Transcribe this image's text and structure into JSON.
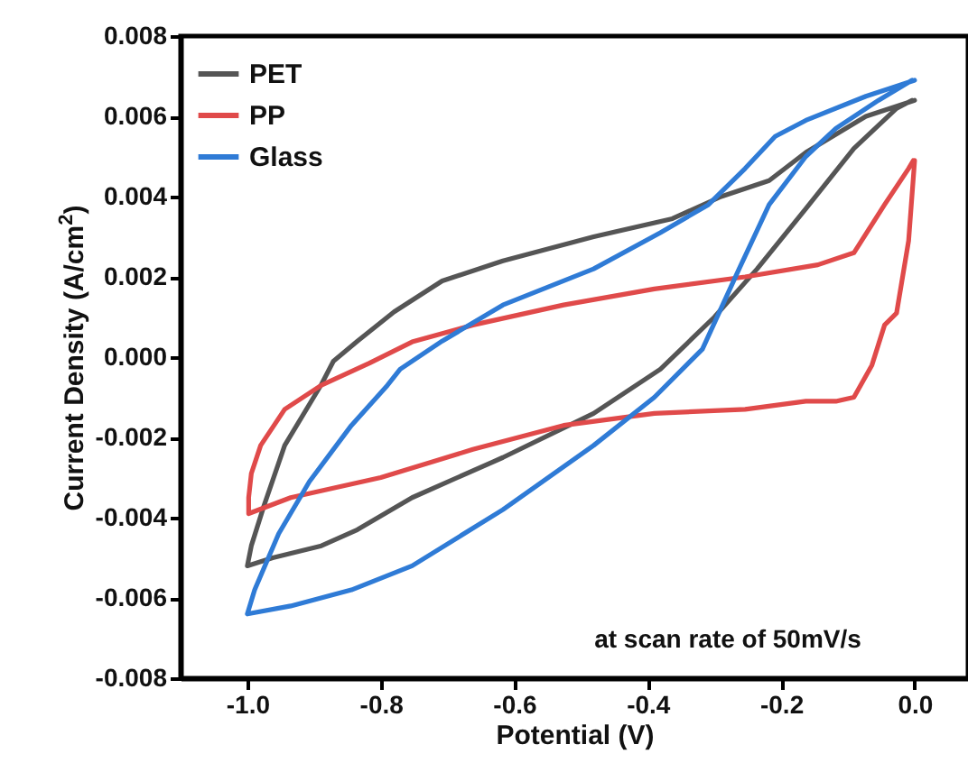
{
  "chart_data": {
    "type": "line",
    "xlabel": "Potential (V)",
    "ylabel": "Current Density (A/cm$^{2}$)",
    "xlim": [
      -1.1,
      0.08
    ],
    "xticks": [
      {
        "value": -1.0,
        "label": "-1.0"
      },
      {
        "value": -0.8,
        "label": "-0.8"
      },
      {
        "value": -0.6,
        "label": "-0.6"
      },
      {
        "value": -0.4,
        "label": "-0.4"
      },
      {
        "value": -0.2,
        "label": "-0.2"
      },
      {
        "value": 0,
        "label": "0.0"
      }
    ],
    "ylim": [
      -0.008,
      0.008
    ],
    "yticks": [
      {
        "value": -0.008,
        "label": "-0.008"
      },
      {
        "value": -0.006,
        "label": "-0.006"
      },
      {
        "value": -0.004,
        "label": "-0.004"
      },
      {
        "value": -0.002,
        "label": "-0.002"
      },
      {
        "value": 0,
        "label": "0.000"
      },
      {
        "value": 0.002,
        "label": "0.002"
      },
      {
        "value": 0.004,
        "label": "0.004"
      },
      {
        "value": 0.006,
        "label": "0.006"
      },
      {
        "value": 0.008,
        "label": "0.008"
      }
    ],
    "grid": false,
    "legend": "top left",
    "marker": "none",
    "line_style": "solid",
    "annotations": [
      "at scan rate of 50mV/s"
    ],
    "series": [
      {
        "name": "PET",
        "color": "#555555",
        "x": [
          0,
          -0.073,
          -0.163,
          -0.218,
          -0.29,
          -0.363,
          -0.481,
          -0.617,
          -0.708,
          -0.78,
          -0.835,
          -0.871,
          -0.889,
          -0.944,
          -0.975,
          -0.994,
          -1.0,
          -0.962,
          -0.889,
          -0.835,
          -0.753,
          -0.617,
          -0.481,
          -0.381,
          -0.3,
          -0.236,
          -0.163,
          -0.091,
          -0.027,
          -0.004
        ],
        "values": [
          0.0064,
          0.006,
          0.0051,
          0.0044,
          0.004,
          0.00345,
          0.003,
          0.0024,
          0.0019,
          0.00113,
          0.0004,
          -0.0001,
          -0.00068,
          -0.0022,
          -0.0037,
          -0.0047,
          -0.0052,
          -0.005,
          -0.0047,
          -0.0043,
          -0.0035,
          -0.0025,
          -0.0014,
          -0.0003,
          0.001,
          0.0022,
          0.0037,
          0.0052,
          0.0062,
          0.0064
        ]
      },
      {
        "name": "PP",
        "color": "#e04a4a",
        "x": [
          0,
          -0.009,
          -0.027,
          -0.045,
          -0.064,
          -0.091,
          -0.118,
          -0.163,
          -0.254,
          -0.39,
          -0.526,
          -0.662,
          -0.8,
          -0.935,
          -0.998,
          -0.998,
          -0.994,
          -0.98,
          -0.944,
          -0.889,
          -0.817,
          -0.753,
          -0.662,
          -0.526,
          -0.39,
          -0.254,
          -0.145,
          -0.091,
          -0.045,
          -0.009,
          -0.002
        ],
        "values": [
          0.0049,
          0.0029,
          0.0011,
          0.0008,
          -0.0002,
          -0.001,
          -0.0011,
          -0.0011,
          -0.0013,
          -0.0014,
          -0.0017,
          -0.0023,
          -0.003,
          -0.0035,
          -0.0039,
          -0.0035,
          -0.0029,
          -0.0022,
          -0.0013,
          -0.0007,
          -0.00015,
          0.00038,
          0.0008,
          0.0013,
          0.0017,
          0.002,
          0.0023,
          0.0026,
          0.0038,
          0.0047,
          0.0049
        ]
      },
      {
        "name": "Glass",
        "color": "#2f7bd6",
        "x": [
          0,
          -0.073,
          -0.163,
          -0.209,
          -0.254,
          -0.309,
          -0.381,
          -0.481,
          -0.617,
          -0.708,
          -0.771,
          -0.79,
          -0.844,
          -0.907,
          -0.953,
          -0.989,
          -1.0,
          -0.935,
          -0.844,
          -0.753,
          -0.617,
          -0.481,
          -0.39,
          -0.318,
          -0.263,
          -0.218,
          -0.163,
          -0.118,
          -0.054,
          -0.004
        ],
        "values": [
          0.0069,
          0.0065,
          0.0059,
          0.0055,
          0.0047,
          0.0038,
          0.0031,
          0.0022,
          0.0013,
          0.0004,
          -0.0003,
          -0.0007,
          -0.0017,
          -0.0031,
          -0.0044,
          -0.0058,
          -0.0064,
          -0.0062,
          -0.0058,
          -0.0052,
          -0.0038,
          -0.0022,
          -0.001,
          0.0002,
          0.0022,
          0.0038,
          0.005,
          0.0057,
          0.0064,
          0.0069
        ]
      }
    ]
  }
}
